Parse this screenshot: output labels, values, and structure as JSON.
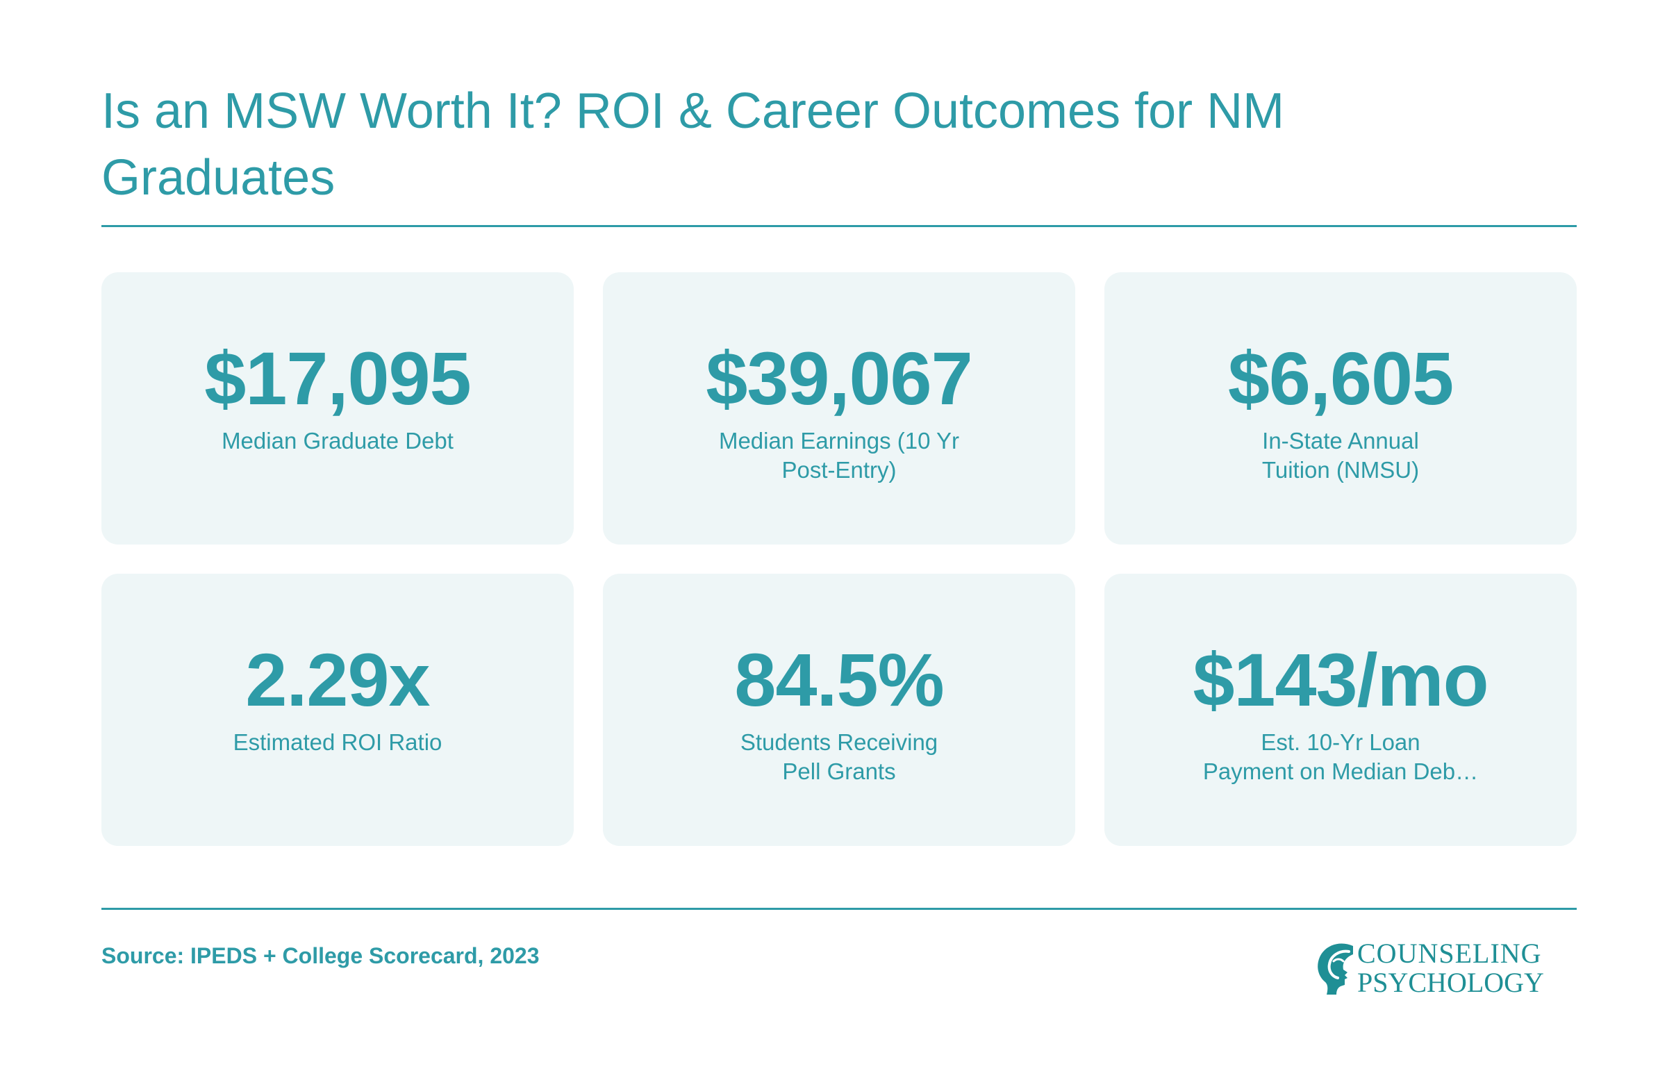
{
  "header": {
    "title": "Is an MSW Worth It? ROI & Career Outcomes for NM Graduates"
  },
  "cards": [
    {
      "value": "$17,095",
      "label_lines": [
        "Median Graduate Debt"
      ]
    },
    {
      "value": "$39,067",
      "label_lines": [
        "Median Earnings (10 Yr",
        "Post-Entry)"
      ]
    },
    {
      "value": "$6,605",
      "label_lines": [
        "In-State Annual",
        "Tuition (NMSU)"
      ]
    },
    {
      "value": "2.29x",
      "label_lines": [
        "Estimated ROI Ratio"
      ]
    },
    {
      "value": "84.5%",
      "label_lines": [
        "Students Receiving",
        "Pell Grants"
      ]
    },
    {
      "value": "$143/mo",
      "label_lines": [
        "Est. 10-Yr Loan",
        "Payment on Median Deb…"
      ]
    }
  ],
  "footer": {
    "source": "Source: IPEDS + College Scorecard, 2023",
    "logo": {
      "line1": "COUNSELING",
      "line2": "PSYCHOLOGY",
      "icon": "head-profile-icon"
    }
  },
  "colors": {
    "accent": "#2e9ba7",
    "card_background": "#eef6f7",
    "logo": "#1f8f95"
  }
}
